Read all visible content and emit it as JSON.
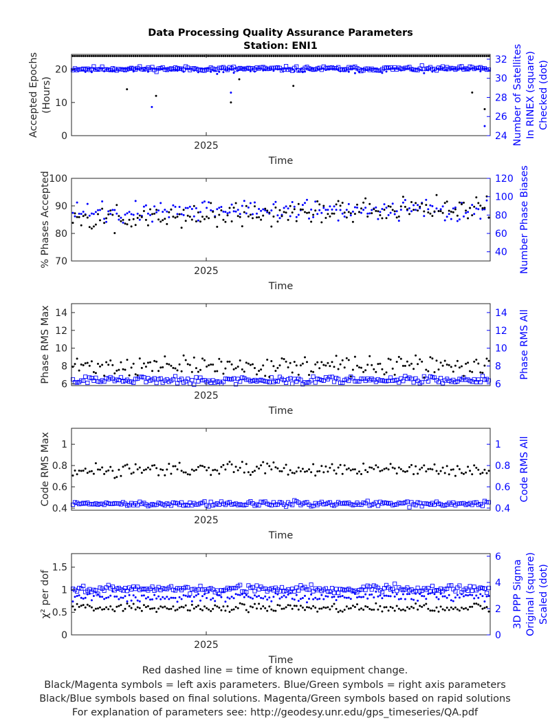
{
  "title": "Data Processing Quality Assurance Parameters",
  "station": "Station: ENI1",
  "x_tick_label": "2025",
  "footer": [
    "Red dashed line = time of known equipment change.",
    "Black/Magenta symbols = left axis parameters. Blue/Green symbols = right axis parameters",
    "Black/Blue symbols based on final solutions.  Magenta/Green symbols based on rapid solutions",
    "For explanation of parameters see: http://geodesy.unr.edu/gps_timeseries/QA.pdf"
  ],
  "colors": {
    "left": "#000000",
    "right": "#0000ff",
    "axis": "#262626"
  },
  "chart_data": [
    {
      "type": "scatter",
      "id": "epochs",
      "xlabel": "Time",
      "ylabel_left": [
        "Accepted Epochs",
        "(Hours)"
      ],
      "ylabel_right": [
        "Number of Satellites",
        "In RINEX (square)",
        "Checked (dot)"
      ],
      "ylim_left": [
        0,
        24.5
      ],
      "yticks_left": [
        0,
        10,
        20
      ],
      "ylim_right": [
        24,
        32.5
      ],
      "yticks_right": [
        24,
        26,
        28,
        30,
        32
      ],
      "left": {
        "base": 24,
        "noise": 0,
        "dips": [
          [
            0.13,
            14
          ],
          [
            0.2,
            12
          ],
          [
            0.38,
            10
          ],
          [
            0.4,
            17
          ],
          [
            0.53,
            15
          ],
          [
            0.96,
            13
          ],
          [
            0.99,
            8
          ]
        ],
        "marker": "dot"
      },
      "right_dot": {
        "base": 31,
        "noise": 0.35,
        "lo": 30,
        "hi": 31,
        "dips": [
          [
            0.19,
            27
          ],
          [
            0.38,
            28.5
          ],
          [
            0.99,
            25
          ]
        ],
        "marker": "dot"
      },
      "right_square": {
        "base": 31,
        "noise": 0.2,
        "lo": 29,
        "hi": 32,
        "marker": "square"
      }
    },
    {
      "type": "scatter",
      "id": "phases",
      "xlabel": "Time",
      "ylabel_left": [
        "% Phases Accepted"
      ],
      "ylabel_right": [
        "Number Phase Biases"
      ],
      "ylim_left": [
        70,
        100
      ],
      "yticks_left": [
        70,
        80,
        90,
        100
      ],
      "ylim_right": [
        30,
        120
      ],
      "yticks_right": [
        40,
        60,
        80,
        100,
        120
      ],
      "left": {
        "base": 87,
        "noise": 3.5,
        "trend": 4,
        "lo": 71.5,
        "hi": 95,
        "marker": "dot"
      },
      "right_dot": {
        "base": 85,
        "noise": 9,
        "lo": 33,
        "hi": 110,
        "marker": "dot"
      }
    },
    {
      "type": "scatter",
      "id": "phase_rms",
      "xlabel": "Time",
      "ylabel_left": [
        "Phase RMS Max"
      ],
      "ylabel_right": [
        "Phase RMS All"
      ],
      "ylim_left": [
        5.8,
        15
      ],
      "yticks_left": [
        6,
        8,
        10,
        12,
        14
      ],
      "ylim_right": [
        5.8,
        15
      ],
      "yticks_right": [
        6,
        8,
        10,
        12,
        14
      ],
      "left": {
        "base": 8.0,
        "noise": 0.9,
        "lo": 6.2,
        "hi": 14.9,
        "marker": "dot"
      },
      "right_square": {
        "base": 6.4,
        "noise": 0.35,
        "lo": 5.9,
        "hi": 7.6,
        "marker": "square"
      }
    },
    {
      "type": "scatter",
      "id": "code_rms",
      "xlabel": "Time",
      "ylabel_left": [
        "Code RMS Max"
      ],
      "ylabel_right": [
        "Code RMS All"
      ],
      "ylim_left": [
        0.38,
        1.15
      ],
      "yticks_left": [
        0.4,
        0.6,
        0.8,
        1.0
      ],
      "tick_labels_left": [
        "0.4",
        "0.6",
        "0.8",
        "1"
      ],
      "ylim_right": [
        0.38,
        1.15
      ],
      "yticks_right": [
        0.4,
        0.6,
        0.8,
        1.0
      ],
      "tick_labels_right": [
        "0.4",
        "0.6",
        "0.8",
        "1"
      ],
      "left": {
        "base": 0.76,
        "noise": 0.05,
        "lo": 0.62,
        "hi": 1.15,
        "marker": "dot"
      },
      "right_square": {
        "base": 0.44,
        "noise": 0.02,
        "lo": 0.39,
        "hi": 0.53,
        "marker": "square"
      }
    },
    {
      "type": "scatter",
      "id": "chi2",
      "xlabel": "Time",
      "ylabel_left": [
        "χ² per dof"
      ],
      "ylabel_right": [
        "3D PPP Sigma",
        "Original (square)",
        "Scaled (dot)"
      ],
      "ylim_left": [
        0,
        1.8
      ],
      "yticks_left": [
        0,
        0.5,
        1.0,
        1.5
      ],
      "tick_labels_left": [
        "0",
        "0.5",
        "1",
        "1.5"
      ],
      "ylim_right": [
        0,
        6.2
      ],
      "yticks_right": [
        0,
        2,
        4,
        6
      ],
      "left": {
        "base": 0.6,
        "noise": 0.08,
        "lo": 0.5,
        "hi": 0.7,
        "marker": "dot"
      },
      "right_dot": {
        "base": 2.9,
        "noise": 0.3,
        "lo": 2.0,
        "hi": 3.6,
        "marker": "dot"
      },
      "right_square": {
        "base": 3.5,
        "noise": 0.25,
        "lo": 3.0,
        "hi": 5.8,
        "marker": "square"
      }
    }
  ]
}
